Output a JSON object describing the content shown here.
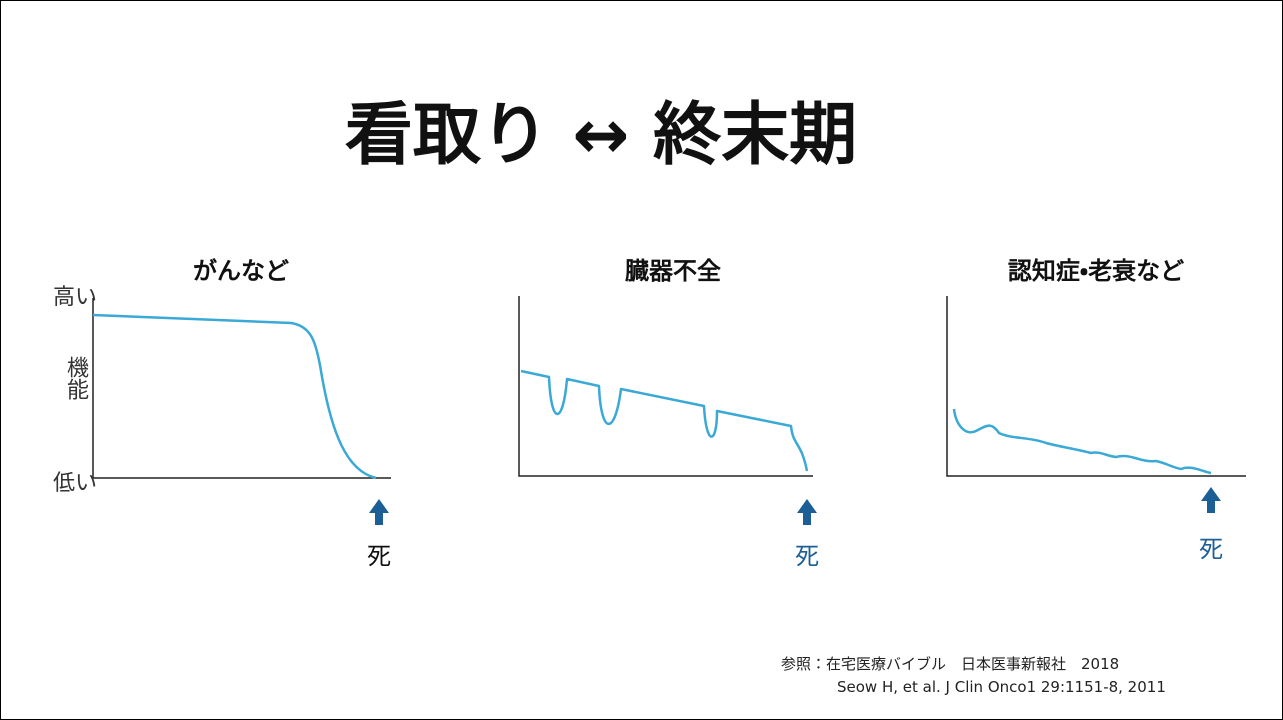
{
  "title": "看取り ↔ 終末期",
  "y_axis": {
    "high": "高い",
    "label": "機能",
    "low": "低い"
  },
  "panels": [
    {
      "title": "がんなど",
      "death": "死"
    },
    {
      "title": "臓器不全",
      "death": "死"
    },
    {
      "title": "認知症・老衰など",
      "death": "死"
    }
  ],
  "references": [
    "参照：在宅医療バイブル　日本医事新報社　2018",
    "Seow H, et al. J Clin Onco1 29:1151-8, 2011"
  ]
}
